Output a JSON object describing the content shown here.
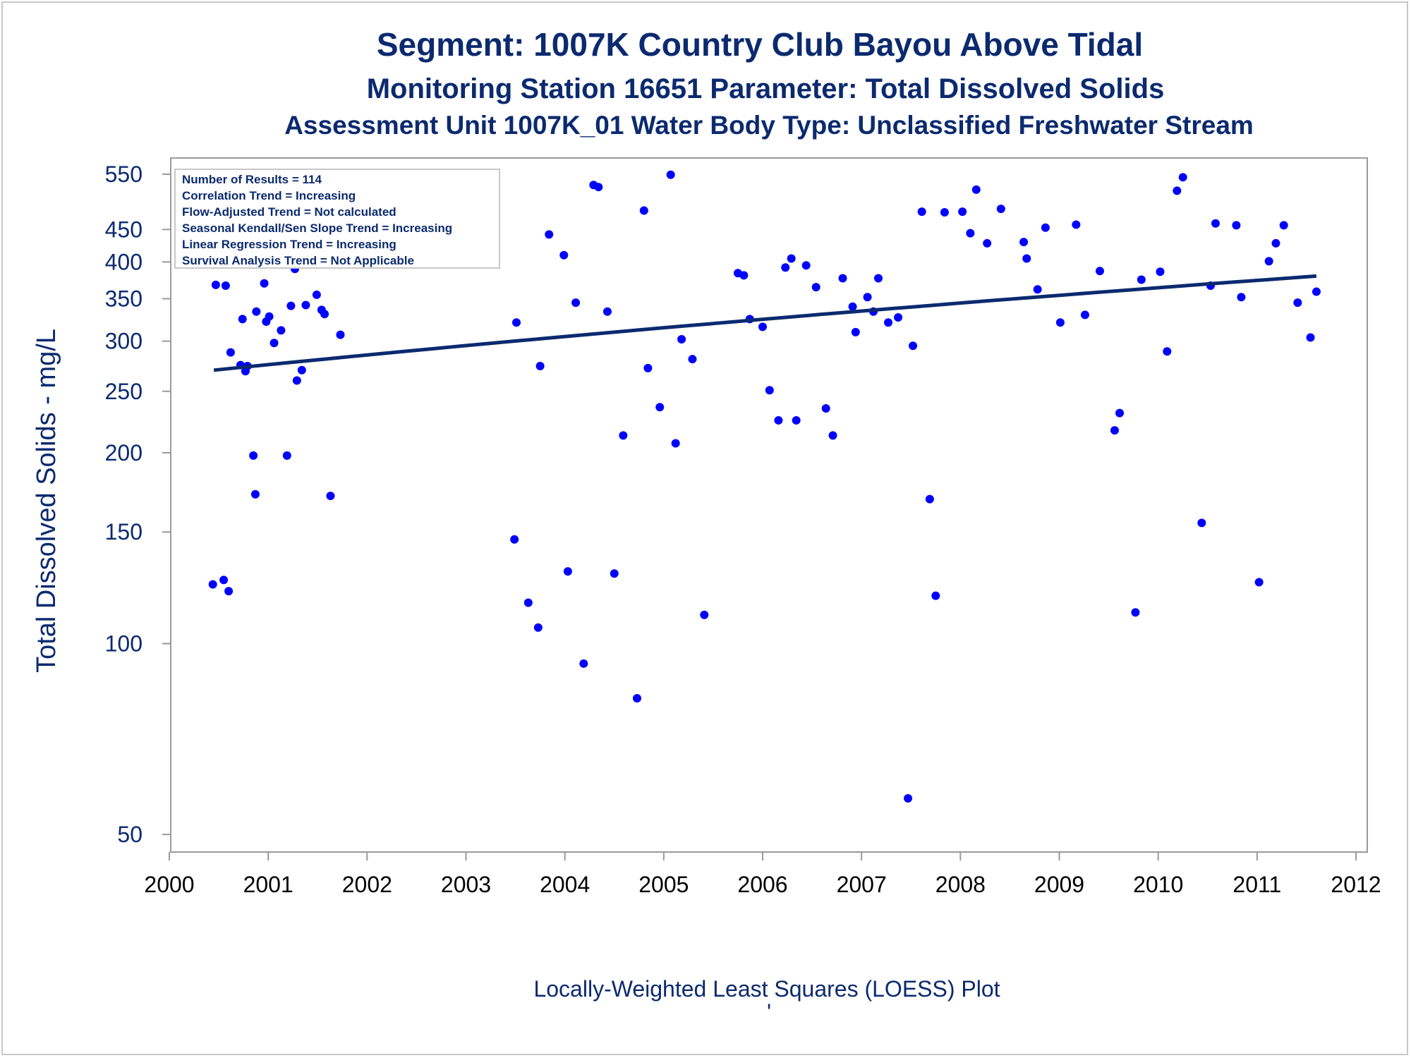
{
  "titles": {
    "line1": "Segment: 1007K  Country Club Bayou Above Tidal",
    "line2": "Monitoring Station 16651 Parameter: Total Dissolved Solids",
    "line3": "Assessment Unit 1007K_01   Water Body Type: Unclassified Freshwater Stream"
  },
  "stats_box": [
    "Number of Results = 114",
    "Correlation Trend = Increasing",
    "Flow-Adjusted Trend = Not calculated",
    "Seasonal Kendall/Sen Slope Trend = Increasing",
    "Linear Regression Trend = Increasing",
    "Survival Analysis Trend = Not Applicable"
  ],
  "footnote": "Locally-Weighted Least Squares (LOESS) Plot",
  "footnote_mark": "'",
  "colors": {
    "text": "#0b2a6f",
    "points": "#0000ff",
    "trend_line": "#0b2a6f",
    "axis": "#9a9a9a"
  },
  "chart_data": {
    "type": "scatter",
    "ylabel": "Total Dissolved Solids - mg/L",
    "xlabel": "",
    "y_scale": "log",
    "xlim": [
      2000,
      2012
    ],
    "ylim": [
      48,
      560
    ],
    "x_ticks": [
      2000,
      2001,
      2002,
      2003,
      2004,
      2005,
      2006,
      2007,
      2008,
      2009,
      2010,
      2011,
      2012
    ],
    "y_ticks": [
      50,
      100,
      150,
      200,
      250,
      300,
      350,
      400,
      450,
      550
    ],
    "grid": false,
    "legend": "none",
    "trend_line": {
      "x": [
        2000.45,
        2011.6
      ],
      "y": [
        270,
        380
      ]
    },
    "series": [
      {
        "x": [
          2000.44,
          2000.47,
          2000.55,
          2000.57,
          2000.6,
          2000.62,
          2000.72,
          2000.74,
          2000.77,
          2000.79,
          2000.85,
          2000.87,
          2000.96,
          2000.98,
          2001.01,
          2001.06,
          2001.13,
          2001.19,
          2001.23,
          2001.27,
          2001.29,
          2001.34,
          2001.38,
          2001.46,
          2001.49,
          2001.54,
          2001.57,
          2001.63,
          2001.73,
          2003.49,
          2003.51,
          2003.63,
          2003.73,
          2003.75,
          2003.84,
          2003.99,
          2004.03,
          2004.11,
          2004.19,
          2004.29,
          2004.34,
          2004.43,
          2004.5,
          2004.59,
          2004.73,
          2004.8,
          2004.84,
          2004.96,
          2005.07,
          2005.12,
          2005.18,
          2005.29,
          2005.41,
          2005.75,
          2005.81,
          2005.87,
          2006.0,
          2006.07,
          2006.16,
          2006.23,
          2006.29,
          2006.34,
          2006.44,
          2006.54,
          2006.64,
          2006.71,
          2006.81,
          2006.91,
          2006.94,
          2007.06,
          2007.12,
          2007.17,
          2007.27,
          2007.37,
          2007.47,
          2007.52,
          2007.61,
          2007.69,
          2007.75,
          2007.84,
          2008.02,
          2008.1,
          2008.16,
          2008.27,
          2008.41,
          2008.64,
          2008.67,
          2008.78,
          2008.86,
          2009.01,
          2009.17,
          2009.26,
          2009.41,
          2009.56,
          2009.61,
          2009.77,
          2009.83,
          2010.02,
          2010.09,
          2010.19,
          2010.25,
          2010.44,
          2010.53,
          2010.58,
          2010.79,
          2010.84,
          2011.02,
          2011.12,
          2011.19,
          2011.27,
          2011.41,
          2011.54,
          2011.6,
          2000.88
        ],
        "y": [
          124,
          368,
          126,
          367,
          121,
          288,
          275,
          325,
          269,
          274,
          198,
          172,
          370,
          322,
          328,
          298,
          312,
          198,
          341,
          390,
          260,
          270,
          342,
          450,
          355,
          336,
          331,
          171,
          307,
          146,
          321,
          116,
          106,
          274,
          442,
          410,
          130,
          345,
          93,
          529,
          525,
          334,
          129,
          213,
          82,
          482,
          272,
          236,
          549,
          207,
          302,
          281,
          111,
          384,
          381,
          325,
          316,
          251,
          225,
          392,
          405,
          225,
          395,
          365,
          235,
          213,
          377,
          340,
          310,
          352,
          334,
          377,
          321,
          327,
          57,
          295,
          480,
          169,
          119,
          479,
          480,
          444,
          520,
          428,
          485,
          430,
          405,
          362,
          453,
          321,
          458,
          330,
          387,
          217,
          231,
          112,
          375,
          386,
          289,
          518,
          544,
          155,
          367,
          460,
          457,
          352,
          125,
          401,
          428,
          457,
          345,
          304,
          359,
          334
        ]
      }
    ]
  }
}
